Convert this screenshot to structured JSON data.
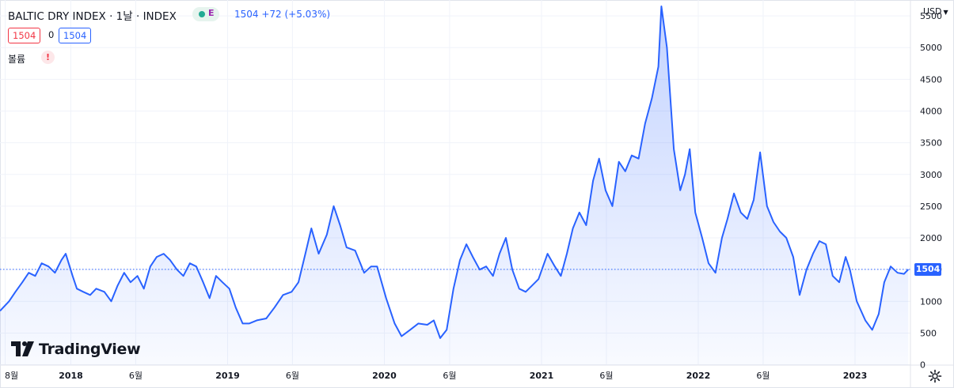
{
  "header": {
    "title": "BALTIC DRY INDEX · 1날 · INDEX",
    "status_label": "E",
    "last_info": "1504  +72 (+5.03%)",
    "price_box_left": "1504",
    "price_box_mid": "0",
    "price_box_right": "1504",
    "volume_label": "볼륨",
    "warning_glyph": "!",
    "currency": "USD"
  },
  "logo_text": "TradingView",
  "icons": {
    "status": "market-status-dot",
    "warning": "warning-icon",
    "settings": "gear-icon",
    "logo": "tradingview-logo-icon"
  },
  "colors": {
    "line": "#2962ff",
    "fill": "#2962ff",
    "price_badge": "#2962ff",
    "grid": "#f0f3fa"
  },
  "chart_data": {
    "type": "area",
    "symbol": "BALTIC DRY INDEX",
    "interval": "1날",
    "last_value": 1504,
    "last_label": "1504",
    "change": "+72 (+5.03%)",
    "y_ticks": [
      0,
      500,
      1000,
      1500,
      2000,
      2500,
      3000,
      3500,
      4000,
      4500,
      5000,
      5500
    ],
    "y_range": [
      -5,
      5750
    ],
    "x_ticks": [
      {
        "label": "8월",
        "date": "2017-08-01",
        "bold": false
      },
      {
        "label": "2018",
        "date": "2018-01-01",
        "bold": true
      },
      {
        "label": "6월",
        "date": "2018-06-01",
        "bold": false
      },
      {
        "label": "2019",
        "date": "2019-01-01",
        "bold": true
      },
      {
        "label": "6월",
        "date": "2019-06-01",
        "bold": false
      },
      {
        "label": "2020",
        "date": "2020-01-01",
        "bold": true
      },
      {
        "label": "6월",
        "date": "2020-06-01",
        "bold": false
      },
      {
        "label": "2021",
        "date": "2021-01-01",
        "bold": true
      },
      {
        "label": "6월",
        "date": "2021-06-01",
        "bold": false
      },
      {
        "label": "2022",
        "date": "2022-01-01",
        "bold": true
      },
      {
        "label": "6월",
        "date": "2022-06-01",
        "bold": false
      },
      {
        "label": "2023",
        "date": "2023-01-01",
        "bold": true
      }
    ],
    "x_range": [
      "2017-07-20",
      "2023-05-10"
    ],
    "grid": true,
    "series": [
      {
        "points": [
          [
            "2017-07-20",
            850
          ],
          [
            "2017-08-10",
            1000
          ],
          [
            "2017-08-25",
            1150
          ],
          [
            "2017-09-10",
            1300
          ],
          [
            "2017-09-25",
            1450
          ],
          [
            "2017-10-10",
            1400
          ],
          [
            "2017-10-25",
            1600
          ],
          [
            "2017-11-10",
            1550
          ],
          [
            "2017-11-25",
            1450
          ],
          [
            "2017-12-10",
            1650
          ],
          [
            "2017-12-20",
            1750
          ],
          [
            "2018-01-05",
            1400
          ],
          [
            "2018-01-15",
            1200
          ],
          [
            "2018-01-30",
            1150
          ],
          [
            "2018-02-15",
            1100
          ],
          [
            "2018-03-01",
            1200
          ],
          [
            "2018-03-20",
            1150
          ],
          [
            "2018-04-05",
            1000
          ],
          [
            "2018-04-20",
            1250
          ],
          [
            "2018-05-05",
            1450
          ],
          [
            "2018-05-20",
            1300
          ],
          [
            "2018-06-05",
            1400
          ],
          [
            "2018-06-20",
            1200
          ],
          [
            "2018-07-05",
            1550
          ],
          [
            "2018-07-20",
            1700
          ],
          [
            "2018-08-05",
            1750
          ],
          [
            "2018-08-20",
            1650
          ],
          [
            "2018-09-05",
            1500
          ],
          [
            "2018-09-20",
            1400
          ],
          [
            "2018-10-05",
            1600
          ],
          [
            "2018-10-20",
            1550
          ],
          [
            "2018-11-05",
            1300
          ],
          [
            "2018-11-20",
            1050
          ],
          [
            "2018-12-05",
            1400
          ],
          [
            "2018-12-20",
            1300
          ],
          [
            "2019-01-05",
            1200
          ],
          [
            "2019-01-20",
            900
          ],
          [
            "2019-02-05",
            650
          ],
          [
            "2019-02-20",
            650
          ],
          [
            "2019-03-10",
            700
          ],
          [
            "2019-04-01",
            730
          ],
          [
            "2019-04-20",
            900
          ],
          [
            "2019-05-10",
            1100
          ],
          [
            "2019-05-30",
            1150
          ],
          [
            "2019-06-15",
            1300
          ],
          [
            "2019-07-01",
            1750
          ],
          [
            "2019-07-15",
            2150
          ],
          [
            "2019-08-01",
            1750
          ],
          [
            "2019-08-20",
            2050
          ],
          [
            "2019-09-05",
            2500
          ],
          [
            "2019-09-20",
            2200
          ],
          [
            "2019-10-05",
            1850
          ],
          [
            "2019-10-25",
            1800
          ],
          [
            "2019-11-15",
            1450
          ],
          [
            "2019-12-01",
            1550
          ],
          [
            "2019-12-15",
            1550
          ],
          [
            "2020-01-05",
            1050
          ],
          [
            "2020-01-25",
            650
          ],
          [
            "2020-02-10",
            450
          ],
          [
            "2020-03-01",
            550
          ],
          [
            "2020-03-20",
            650
          ],
          [
            "2020-04-10",
            630
          ],
          [
            "2020-04-25",
            700
          ],
          [
            "2020-05-10",
            420
          ],
          [
            "2020-05-25",
            550
          ],
          [
            "2020-06-10",
            1200
          ],
          [
            "2020-06-25",
            1650
          ],
          [
            "2020-07-10",
            1900
          ],
          [
            "2020-07-25",
            1700
          ],
          [
            "2020-08-10",
            1500
          ],
          [
            "2020-08-25",
            1550
          ],
          [
            "2020-09-10",
            1400
          ],
          [
            "2020-09-25",
            1750
          ],
          [
            "2020-10-10",
            2000
          ],
          [
            "2020-10-25",
            1500
          ],
          [
            "2020-11-10",
            1200
          ],
          [
            "2020-11-25",
            1150
          ],
          [
            "2020-12-10",
            1250
          ],
          [
            "2020-12-25",
            1350
          ],
          [
            "2021-01-15",
            1750
          ],
          [
            "2021-02-01",
            1550
          ],
          [
            "2021-02-15",
            1400
          ],
          [
            "2021-03-01",
            1750
          ],
          [
            "2021-03-15",
            2150
          ],
          [
            "2021-03-30",
            2400
          ],
          [
            "2021-04-15",
            2200
          ],
          [
            "2021-05-01",
            2900
          ],
          [
            "2021-05-15",
            3250
          ],
          [
            "2021-05-30",
            2750
          ],
          [
            "2021-06-15",
            2500
          ],
          [
            "2021-06-30",
            3200
          ],
          [
            "2021-07-15",
            3050
          ],
          [
            "2021-07-30",
            3300
          ],
          [
            "2021-08-15",
            3250
          ],
          [
            "2021-08-30",
            3800
          ],
          [
            "2021-09-15",
            4200
          ],
          [
            "2021-09-30",
            4700
          ],
          [
            "2021-10-07",
            5650
          ],
          [
            "2021-10-20",
            5000
          ],
          [
            "2021-11-05",
            3400
          ],
          [
            "2021-11-20",
            2750
          ],
          [
            "2021-12-01",
            3000
          ],
          [
            "2021-12-12",
            3400
          ],
          [
            "2021-12-25",
            2400
          ],
          [
            "2022-01-10",
            2000
          ],
          [
            "2022-01-25",
            1600
          ],
          [
            "2022-02-10",
            1450
          ],
          [
            "2022-02-25",
            2000
          ],
          [
            "2022-03-10",
            2300
          ],
          [
            "2022-03-25",
            2700
          ],
          [
            "2022-04-10",
            2400
          ],
          [
            "2022-04-25",
            2300
          ],
          [
            "2022-05-10",
            2600
          ],
          [
            "2022-05-25",
            3350
          ],
          [
            "2022-06-10",
            2500
          ],
          [
            "2022-06-25",
            2250
          ],
          [
            "2022-07-10",
            2100
          ],
          [
            "2022-07-25",
            2000
          ],
          [
            "2022-08-10",
            1700
          ],
          [
            "2022-08-25",
            1100
          ],
          [
            "2022-09-10",
            1500
          ],
          [
            "2022-09-25",
            1750
          ],
          [
            "2022-10-10",
            1950
          ],
          [
            "2022-10-25",
            1900
          ],
          [
            "2022-11-10",
            1400
          ],
          [
            "2022-11-25",
            1300
          ],
          [
            "2022-12-10",
            1700
          ],
          [
            "2022-12-20",
            1500
          ],
          [
            "2023-01-05",
            1000
          ],
          [
            "2023-01-25",
            700
          ],
          [
            "2023-02-10",
            550
          ],
          [
            "2023-02-25",
            800
          ],
          [
            "2023-03-10",
            1300
          ],
          [
            "2023-03-25",
            1550
          ],
          [
            "2023-04-10",
            1450
          ],
          [
            "2023-04-25",
            1432
          ],
          [
            "2023-05-05",
            1504
          ]
        ]
      }
    ]
  }
}
